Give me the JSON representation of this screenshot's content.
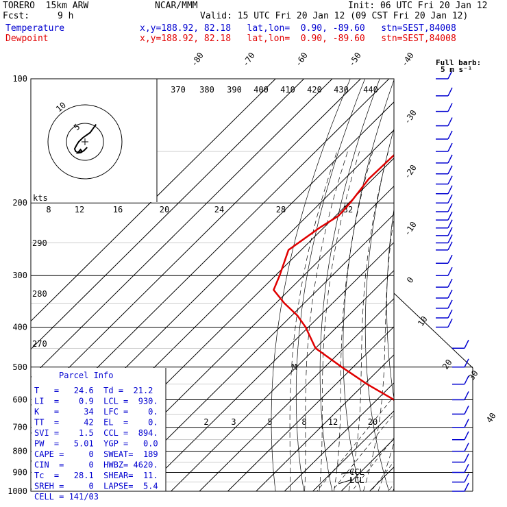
{
  "header": {
    "model": "TORERO  15km ARW",
    "org": "NCAR/MMM",
    "init": "Init: 06 UTC Fri 20 Jan 12",
    "fcst_label": "Fcst:",
    "fcst_value": "9 h",
    "valid": "Valid: 15 UTC Fri 20 Jan 12 (09 CST Fri 20 Jan 12)",
    "temp_label": "Temperature",
    "dew_label": "Dewpoint",
    "loc_line": "x,y=188.92, 82.18   lat,lon=  0.90, -89.60   stn=SEST,84008"
  },
  "barb_title": "Full barb:",
  "barb_unit": "5 m s⁻¹",
  "hodo_kts": "kts",
  "hodo_ring": "5",
  "hodo_ring2": "10",
  "parcel_title": "Parcel Info",
  "parcel_rows": [
    "T   =   24.6  Td =  21.2",
    "LI  =    0.9  LCL =  930.",
    "K   =     34  LFC =    0.",
    "TT  =     42  EL  =    0.",
    "SVI =    1.5  CCL =  894.",
    "PW  =   5.01  YGP =   0.0",
    "CAPE =     0  SWEAT=  189",
    "CIN  =     0  HWBZ= 4620.",
    "Tc  =   28.1  SHEAR=  11.",
    "SREH =     0  LAPSE=  5.4",
    "CELL = 141/03"
  ],
  "ccl_label": "CCL",
  "lcl_label": "LCL",
  "m_label": "M",
  "colors": {
    "temperature": "#0000d0",
    "dewpoint": "#e00000",
    "wind": "#0000d0"
  },
  "chart_data": {
    "type": "line",
    "diagram": "skew-T log-p",
    "y_axis": {
      "label": "pressure (hPa)",
      "ticks": [
        100,
        200,
        300,
        400,
        500,
        600,
        700,
        800,
        900,
        1000
      ],
      "scale": "log"
    },
    "isotherm_labels": [
      -80,
      -70,
      -60,
      -50,
      -40,
      -30,
      -20,
      -10,
      0,
      10,
      20,
      30,
      40
    ],
    "mixing_ratio_labels": [
      "2",
      "3",
      "5",
      "8",
      "12",
      "20"
    ],
    "theta_e_labels": [
      "370",
      "380",
      "390",
      "400",
      "410",
      "420",
      "430",
      "440"
    ],
    "theta_labels": [
      "290",
      "280",
      "270"
    ],
    "hodograph_speed_labels": [
      "8",
      "12",
      "16",
      "20",
      "24",
      "28",
      "32"
    ],
    "series": [
      {
        "name": "Temperature",
        "points": [
          [
            100,
            -85.5
          ],
          [
            125,
            -84.5
          ],
          [
            150,
            -80.5
          ],
          [
            175,
            -75.0
          ],
          [
            200,
            -69.0
          ],
          [
            225,
            -62.5
          ],
          [
            250,
            -56.5
          ],
          [
            275,
            -50.5
          ],
          [
            300,
            -45.0
          ],
          [
            350,
            -35.5
          ],
          [
            400,
            -27.5
          ],
          [
            450,
            -20.0
          ],
          [
            500,
            -13.0
          ],
          [
            550,
            -8.5
          ],
          [
            600,
            -4.0
          ],
          [
            650,
            0.5
          ],
          [
            700,
            4.5
          ],
          [
            750,
            8.5
          ],
          [
            800,
            12.0
          ],
          [
            850,
            15.5
          ],
          [
            900,
            18.5
          ],
          [
            950,
            21.5
          ],
          [
            980,
            23.8
          ],
          [
            1000,
            24.6
          ]
        ]
      },
      {
        "name": "Dewpoint",
        "points": [
          [
            100,
            -101.0
          ],
          [
            125,
            -100.5
          ],
          [
            150,
            -101.0
          ],
          [
            175,
            -101.5
          ],
          [
            200,
            -99.5
          ],
          [
            215,
            -99.0
          ],
          [
            230,
            -101.5
          ],
          [
            260,
            -104.5
          ],
          [
            300,
            -98.5
          ],
          [
            325,
            -95.5
          ],
          [
            350,
            -87.0
          ],
          [
            375,
            -78.0
          ],
          [
            400,
            -71.0
          ],
          [
            450,
            -60.0
          ],
          [
            500,
            -44.0
          ],
          [
            550,
            -29.0
          ],
          [
            600,
            -14.0
          ],
          [
            650,
            -6.0
          ],
          [
            700,
            3.5
          ],
          [
            750,
            8.5
          ],
          [
            800,
            12.0
          ],
          [
            850,
            14.5
          ],
          [
            900,
            14.5
          ],
          [
            920,
            17.0
          ],
          [
            950,
            19.5
          ],
          [
            1000,
            21.2
          ]
        ]
      }
    ],
    "wind_levels_hpa": [
      100,
      110,
      120,
      130,
      140,
      150,
      160,
      170,
      180,
      190,
      200,
      210,
      220,
      230,
      240,
      250,
      260,
      280,
      300,
      320,
      340,
      360,
      380,
      400,
      450,
      500,
      550,
      600,
      650,
      700,
      750,
      800,
      850,
      900,
      950,
      1000
    ],
    "hodograph_trace_kt": [
      [
        3.0,
        4.7
      ],
      [
        1.4,
        2.5
      ],
      [
        -0.6,
        1.1
      ],
      [
        -1.7,
        0.0
      ],
      [
        -2.2,
        -0.8
      ],
      [
        -2.8,
        -1.9
      ],
      [
        -2.5,
        -2.6
      ],
      [
        -1.7,
        -3.0
      ],
      [
        -0.8,
        -2.6
      ],
      [
        -1.2,
        -2.1
      ],
      [
        -2.0,
        -3.0
      ],
      [
        -1.1,
        -2.9
      ],
      [
        -0.3,
        -2.4
      ],
      [
        0.6,
        -1.5
      ]
    ]
  }
}
